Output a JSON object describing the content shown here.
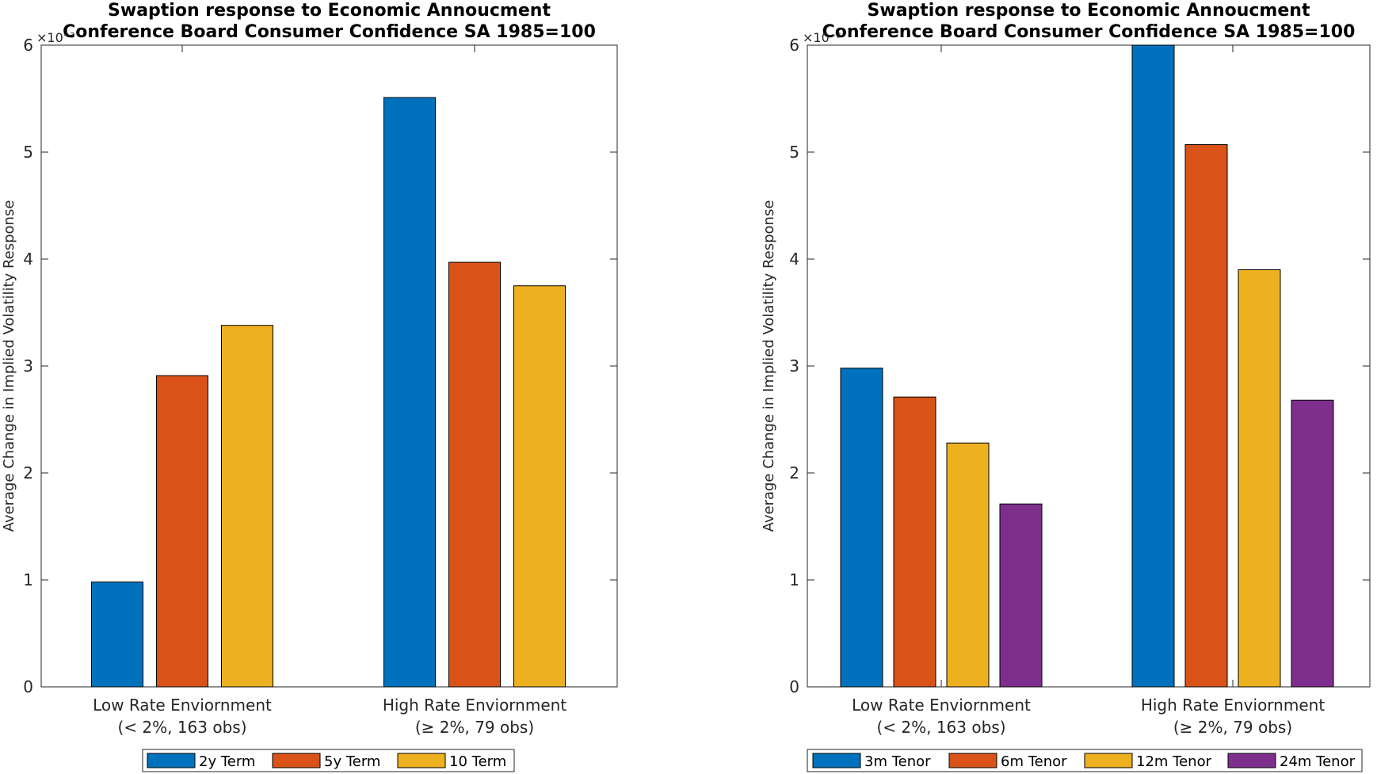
{
  "colors": {
    "blue": "#0072BD",
    "orange": "#D95319",
    "yellow": "#EDB120",
    "purple": "#7E2F8E"
  },
  "chart_data": [
    {
      "type": "bar",
      "title": [
        "Swaption response to Economic Annoucment",
        "Conference Board Consumer Confidence SA 1985=100"
      ],
      "ylabel": "Average Change in Implied Volatility Response",
      "y_exponent": "×10⁻³",
      "ylim": [
        0,
        6
      ],
      "yticks": [
        0,
        1,
        2,
        3,
        4,
        5,
        6
      ],
      "categories": [
        [
          "Low Rate Enviornment",
          "(< 2%, 163 obs)"
        ],
        [
          "High Rate Enviornment",
          "(≥ 2%, 79 obs)"
        ]
      ],
      "series": [
        {
          "name": "2y Term",
          "color": "#0072BD",
          "values": [
            0.98,
            5.51
          ]
        },
        {
          "name": "5y Term",
          "color": "#D95319",
          "values": [
            2.91,
            3.97
          ]
        },
        {
          "name": "10 Term",
          "color": "#EDB120",
          "values": [
            3.38,
            3.75
          ]
        }
      ],
      "legend": "bottom-outside"
    },
    {
      "type": "bar",
      "title": [
        "Swaption response to Economic Annoucment",
        "Conference Board Consumer Confidence SA 1985=100"
      ],
      "ylabel": "Average Change in Implied Volatility Response",
      "y_exponent": "×10⁻³",
      "ylim": [
        0,
        6
      ],
      "yticks": [
        0,
        1,
        2,
        3,
        4,
        5,
        6
      ],
      "categories": [
        [
          "Low Rate Enviornment",
          "(< 2%, 163 obs)"
        ],
        [
          "High Rate Enviornment",
          "(≥ 2%, 79 obs)"
        ]
      ],
      "series": [
        {
          "name": "3m Tenor",
          "color": "#0072BD",
          "values": [
            2.98,
            6.0
          ]
        },
        {
          "name": "6m Tenor",
          "color": "#D95319",
          "values": [
            2.71,
            5.07
          ]
        },
        {
          "name": "12m Tenor",
          "color": "#EDB120",
          "values": [
            2.28,
            3.9
          ]
        },
        {
          "name": "24m Tenor",
          "color": "#7E2F8E",
          "values": [
            1.71,
            2.68
          ]
        }
      ],
      "legend": "bottom-outside"
    }
  ]
}
